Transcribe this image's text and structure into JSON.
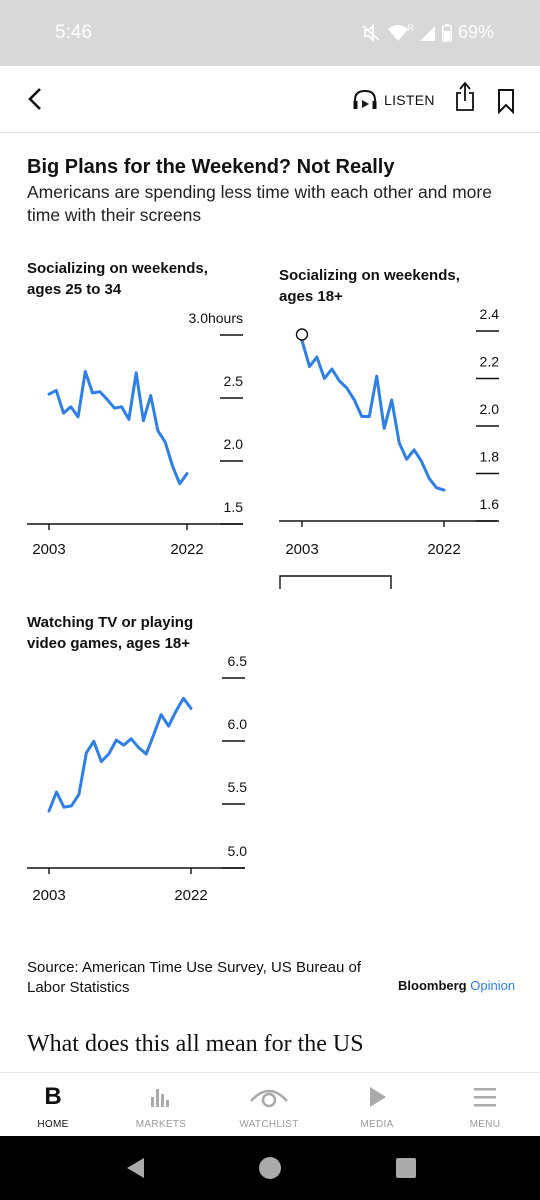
{
  "status_bar": {
    "time": "5:46",
    "battery": "69%",
    "network_badge": "R"
  },
  "app_bar": {
    "listen_label": "LISTEN"
  },
  "article": {
    "headline": "Big Plans for the Weekend? Not Really",
    "subhead": "Americans are spending less time with each other and more time with their screens",
    "source": "Source: American Time Use Survey, US Bureau of Labor Statistics",
    "brand_main": "Bloomberg",
    "brand_sub": "Opinion",
    "next_heading": "What does this all mean for the US"
  },
  "chart_data": [
    {
      "type": "line",
      "title": "Socializing on weekends,\nages 25 to 34",
      "ylim": [
        1.5,
        3.0
      ],
      "ytick_labels": [
        "3.0hours",
        "2.5",
        "2.0",
        "1.5"
      ],
      "xtick_labels": [
        "2003",
        "2022"
      ],
      "series": [
        {
          "x": [
            2003,
            2004,
            2005,
            2006,
            2007,
            2008,
            2009,
            2010,
            2011,
            2012,
            2013,
            2014,
            2015,
            2016,
            2017,
            2018,
            2019,
            2020,
            2021,
            2022
          ],
          "values": [
            2.53,
            2.56,
            2.38,
            2.43,
            2.35,
            2.71,
            2.54,
            2.55,
            2.49,
            2.42,
            2.43,
            2.33,
            2.7,
            2.32,
            2.52,
            2.24,
            2.15,
            1.96,
            1.82,
            1.9
          ],
          "color": "#2f7fe8"
        }
      ]
    },
    {
      "type": "line",
      "title": "Socializing on weekends,\nages 18+",
      "ylim": [
        1.6,
        2.4
      ],
      "ytick_labels": [
        "2.4",
        "2.2",
        "2.0",
        "1.8",
        "1.6"
      ],
      "xtick_labels": [
        "2003",
        "2022"
      ],
      "series": [
        {
          "x": [
            2003,
            2004,
            2005,
            2006,
            2007,
            2008,
            2009,
            2010,
            2011,
            2012,
            2013,
            2014,
            2015,
            2016,
            2017,
            2018,
            2019,
            2020,
            2021,
            2022
          ],
          "values": [
            2.36,
            2.25,
            2.29,
            2.2,
            2.24,
            2.19,
            2.16,
            2.11,
            2.04,
            2.04,
            2.21,
            1.99,
            2.11,
            1.93,
            1.86,
            1.9,
            1.85,
            1.78,
            1.74,
            1.73
          ],
          "color": "#2f7fe8"
        }
      ],
      "annotation": "circle at first point"
    },
    {
      "type": "line",
      "title": "Watching TV or playing\nvideo games, ages 18+",
      "ylim": [
        5.0,
        6.5
      ],
      "ytick_labels": [
        "6.5",
        "6.0",
        "5.5",
        "5.0"
      ],
      "xtick_labels": [
        "2003",
        "2022"
      ],
      "series": [
        {
          "x": [
            2003,
            2004,
            2005,
            2006,
            2007,
            2008,
            2009,
            2010,
            2011,
            2012,
            2013,
            2014,
            2015,
            2016,
            2017,
            2018,
            2019,
            2020,
            2021,
            2022
          ],
          "values": [
            5.45,
            5.6,
            5.48,
            5.49,
            5.58,
            5.91,
            6.0,
            5.84,
            5.9,
            6.01,
            5.97,
            6.02,
            5.95,
            5.9,
            6.05,
            6.21,
            6.12,
            6.24,
            6.34,
            6.26
          ],
          "color": "#2f7fe8"
        }
      ]
    }
  ],
  "bottom_nav": {
    "items": [
      {
        "label": "HOME",
        "active": true
      },
      {
        "label": "MARKETS",
        "active": false
      },
      {
        "label": "WATCHLIST",
        "active": false
      },
      {
        "label": "MEDIA",
        "active": false
      },
      {
        "label": "MENU",
        "active": false
      }
    ]
  }
}
